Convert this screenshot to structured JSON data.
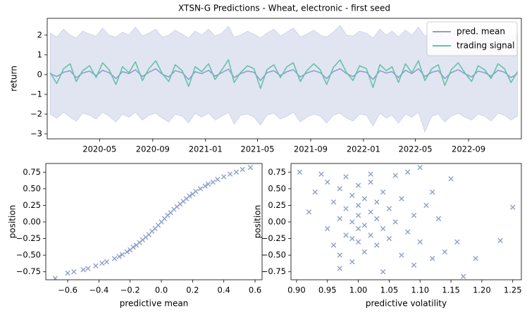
{
  "chart_data": [
    {
      "type": "line",
      "title": "XTSN-G Predictions - Wheat, electronic - first seed",
      "ylabel": "return",
      "x": [
        "2020-01-08",
        "2020-01-23",
        "2020-02-08",
        "2020-02-23",
        "2020-03-08",
        "2020-03-23",
        "2020-04-08",
        "2020-04-23",
        "2020-05-08",
        "2020-05-23",
        "2020-06-08",
        "2020-06-23",
        "2020-07-08",
        "2020-07-23",
        "2020-08-08",
        "2020-08-23",
        "2020-09-08",
        "2020-09-23",
        "2020-10-08",
        "2020-10-23",
        "2020-11-08",
        "2020-11-23",
        "2020-12-08",
        "2020-12-23",
        "2021-01-08",
        "2021-01-23",
        "2021-02-08",
        "2021-02-23",
        "2021-03-08",
        "2021-03-23",
        "2021-04-08",
        "2021-04-23",
        "2021-05-08",
        "2021-05-23",
        "2021-06-08",
        "2021-06-23",
        "2021-07-08",
        "2021-07-23",
        "2021-08-08",
        "2021-08-23",
        "2021-09-08",
        "2021-09-23",
        "2021-10-08",
        "2021-10-23",
        "2021-11-08",
        "2021-11-23",
        "2021-12-08",
        "2021-12-23",
        "2022-01-08",
        "2022-01-23",
        "2022-02-08",
        "2022-02-23",
        "2022-03-08",
        "2022-03-23",
        "2022-04-08",
        "2022-04-23",
        "2022-05-08",
        "2022-05-23",
        "2022-06-08",
        "2022-06-23",
        "2022-07-08",
        "2022-07-23",
        "2022-08-08",
        "2022-08-23",
        "2022-09-08",
        "2022-09-23",
        "2022-10-08",
        "2022-10-23",
        "2022-11-08",
        "2022-11-23",
        "2022-12-08",
        "2022-12-23"
      ],
      "band": {
        "color": "#e1e5f2",
        "edge": "#c3cbe6",
        "upper": [
          2.1,
          1.9,
          2.3,
          2.0,
          1.85,
          2.2,
          2.05,
          1.95,
          2.35,
          2.0,
          1.9,
          2.15,
          2.0,
          2.4,
          1.95,
          2.1,
          2.3,
          1.9,
          2.0,
          2.25,
          2.05,
          1.85,
          2.2,
          2.0,
          2.3,
          1.95,
          2.1,
          2.45,
          1.9,
          2.0,
          2.2,
          2.05,
          1.85,
          2.1,
          2.3,
          1.95,
          2.15,
          2.35,
          1.9,
          2.05,
          2.25,
          2.0,
          1.9,
          2.15,
          2.5,
          2.0,
          1.95,
          2.2,
          2.1,
          1.85,
          2.3,
          2.0,
          2.2,
          1.9,
          2.25,
          2.0,
          2.4,
          1.95,
          2.1,
          2.25,
          1.9,
          2.05,
          2.35,
          2.0,
          1.95,
          2.2,
          2.1,
          1.9,
          2.3,
          2.1,
          1.95,
          2.05
        ],
        "lower": [
          -2.0,
          -2.2,
          -1.9,
          -2.15,
          -2.35,
          -1.95,
          -2.05,
          -2.25,
          -1.9,
          -2.1,
          -2.4,
          -2.0,
          -2.15,
          -1.9,
          -2.3,
          -2.05,
          -1.95,
          -2.2,
          -2.4,
          -2.0,
          -2.1,
          -2.45,
          -1.95,
          -2.15,
          -1.95,
          -2.3,
          -2.1,
          -1.9,
          -2.5,
          -2.05,
          -2.0,
          -2.15,
          -2.55,
          -2.05,
          -1.95,
          -2.25,
          -2.1,
          -1.9,
          -2.4,
          -2.15,
          -2.0,
          -2.1,
          -2.45,
          -2.05,
          -1.95,
          -2.2,
          -2.35,
          -2.0,
          -2.05,
          -2.6,
          -1.95,
          -2.2,
          -2.05,
          -2.45,
          -2.0,
          -2.15,
          -1.9,
          -2.9,
          -2.1,
          -2.0,
          -2.4,
          -2.1,
          -1.95,
          -2.15,
          -2.3,
          -2.0,
          -2.1,
          -2.35,
          -1.95,
          -2.05,
          -2.3,
          -2.1
        ]
      },
      "series": [
        {
          "name": "pred. mean",
          "color": "#8da0cb",
          "values": [
            0.05,
            -0.1,
            0.12,
            0.2,
            -0.15,
            0.08,
            0.18,
            -0.05,
            0.22,
            0.1,
            -0.2,
            0.15,
            0.05,
            0.25,
            -0.1,
            0.12,
            0.3,
            0.02,
            -0.12,
            0.2,
            0.1,
            -0.25,
            0.15,
            0.05,
            0.22,
            -0.08,
            0.1,
            0.28,
            -0.15,
            0.05,
            0.18,
            0.12,
            -0.3,
            0.1,
            0.2,
            -0.05,
            0.15,
            0.25,
            -0.12,
            0.08,
            0.2,
            0.1,
            -0.2,
            0.15,
            0.3,
            0.05,
            -0.1,
            0.18,
            0.12,
            -0.25,
            0.2,
            0.08,
            0.15,
            -0.15,
            0.22,
            0.05,
            0.3,
            -0.1,
            0.12,
            0.2,
            -0.2,
            0.1,
            0.25,
            0.05,
            -0.12,
            0.18,
            0.1,
            -0.08,
            0.22,
            0.12,
            -0.15,
            0.05
          ]
        },
        {
          "name": "trading signal",
          "color": "#66c2a5",
          "values": [
            0.1,
            -0.45,
            0.3,
            0.55,
            -0.35,
            0.2,
            0.45,
            -0.15,
            0.6,
            0.25,
            -0.5,
            0.4,
            0.1,
            0.65,
            -0.3,
            0.3,
            0.7,
            0.05,
            -0.35,
            0.5,
            0.2,
            -0.6,
            0.4,
            0.15,
            0.55,
            -0.25,
            0.25,
            0.75,
            -0.4,
            0.1,
            0.45,
            0.3,
            -0.7,
            0.25,
            0.5,
            -0.15,
            0.4,
            0.6,
            -0.35,
            0.2,
            0.55,
            0.25,
            -0.5,
            0.35,
            0.75,
            0.1,
            -0.3,
            0.45,
            0.3,
            -0.65,
            0.5,
            0.2,
            0.4,
            -0.4,
            0.55,
            0.1,
            0.7,
            -0.3,
            0.3,
            0.5,
            -0.55,
            0.25,
            0.6,
            0.1,
            -0.35,
            0.45,
            0.25,
            -0.2,
            0.55,
            0.3,
            -0.4,
            0.15
          ]
        }
      ],
      "xlim": [
        "2020-01-01",
        "2023-01-01"
      ],
      "xticks": [
        {
          "value": "2020-05-01",
          "label": "2020-05"
        },
        {
          "value": "2020-09-01",
          "label": "2020-09"
        },
        {
          "value": "2021-01-01",
          "label": "2021-01"
        },
        {
          "value": "2021-05-01",
          "label": "2021-05"
        },
        {
          "value": "2021-09-01",
          "label": "2021-09"
        },
        {
          "value": "2022-01-01",
          "label": "2022-01"
        },
        {
          "value": "2022-05-01",
          "label": "2022-05"
        },
        {
          "value": "2022-09-01",
          "label": "2022-09"
        }
      ],
      "ylim": [
        -3.25,
        2.85
      ],
      "yticks": [
        2,
        1,
        0,
        {
          "value": -1,
          "label": "−1"
        },
        {
          "value": -2,
          "label": "−2"
        },
        {
          "value": -3,
          "label": "−3"
        }
      ],
      "legend": "upper right"
    },
    {
      "type": "scatter",
      "xlabel": "predictive mean",
      "ylabel": "position",
      "color": "#8da0cb",
      "x": [
        -0.68,
        -0.6,
        -0.56,
        -0.5,
        -0.47,
        -0.42,
        -0.38,
        -0.35,
        -0.3,
        -0.27,
        -0.25,
        -0.22,
        -0.2,
        -0.18,
        -0.16,
        -0.14,
        -0.12,
        -0.1,
        -0.08,
        -0.06,
        -0.04,
        -0.02,
        0.0,
        0.02,
        0.04,
        0.06,
        0.08,
        0.1,
        0.12,
        0.14,
        0.16,
        0.18,
        0.2,
        0.22,
        0.25,
        0.28,
        0.3,
        0.33,
        0.36,
        0.4,
        0.44,
        0.48,
        0.52,
        0.57
      ],
      "values": [
        -0.85,
        -0.77,
        -0.75,
        -0.72,
        -0.7,
        -0.66,
        -0.62,
        -0.6,
        -0.55,
        -0.52,
        -0.49,
        -0.45,
        -0.42,
        -0.38,
        -0.35,
        -0.31,
        -0.27,
        -0.23,
        -0.19,
        -0.14,
        -0.1,
        -0.05,
        0.0,
        0.05,
        0.1,
        0.14,
        0.19,
        0.23,
        0.27,
        0.31,
        0.35,
        0.39,
        0.42,
        0.46,
        0.5,
        0.54,
        0.57,
        0.6,
        0.64,
        0.68,
        0.72,
        0.75,
        0.79,
        0.82
      ],
      "xlim": [
        -0.74,
        0.645
      ],
      "xticks": [
        {
          "value": -0.6,
          "label": "−0.6"
        },
        {
          "value": -0.4,
          "label": "−0.4"
        },
        {
          "value": -0.2,
          "label": "−0.2"
        },
        {
          "value": 0,
          "label": "0.0"
        },
        0.2,
        0.4,
        0.6
      ],
      "ylim": [
        -0.87,
        0.88
      ],
      "yticks": [
        0.75,
        {
          "value": 0.5,
          "label": "0.50"
        },
        0.25,
        {
          "value": 0,
          "label": "0.00"
        },
        {
          "value": -0.25,
          "label": "−0.25"
        },
        {
          "value": -0.5,
          "label": "−0.50"
        },
        {
          "value": -0.75,
          "label": "−0.75"
        }
      ]
    },
    {
      "type": "scatter",
      "xlabel": "predictive volatility",
      "ylabel": "position",
      "color": "#8da0cb",
      "x": [
        0.905,
        0.92,
        0.93,
        0.94,
        0.95,
        0.95,
        0.96,
        0.96,
        0.97,
        0.97,
        0.97,
        0.98,
        0.98,
        0.98,
        0.99,
        0.99,
        0.99,
        1.0,
        1.0,
        1.0,
        1.0,
        1.01,
        1.01,
        1.01,
        1.02,
        1.02,
        1.02,
        1.03,
        1.03,
        1.03,
        1.04,
        1.04,
        1.04,
        1.05,
        1.05,
        1.06,
        1.06,
        1.07,
        1.07,
        1.08,
        1.08,
        1.09,
        1.09,
        1.1,
        1.1,
        1.11,
        1.12,
        1.12,
        1.13,
        1.14,
        1.15,
        1.16,
        1.17,
        1.19,
        1.23,
        1.25,
        0.97,
        1.02,
        0.99,
        1.0
      ],
      "values": [
        0.75,
        0.15,
        0.45,
        0.72,
        0.6,
        -0.1,
        0.3,
        -0.35,
        0.5,
        0.05,
        -0.5,
        0.68,
        0.2,
        -0.2,
        0.4,
        0.0,
        -0.6,
        0.55,
        0.1,
        -0.3,
        0.25,
        -0.05,
        0.35,
        -0.45,
        0.15,
        -0.2,
        0.6,
        0.05,
        -0.35,
        0.3,
        -0.1,
        0.45,
        -0.75,
        0.2,
        -0.25,
        0.7,
        0.0,
        -0.5,
        0.35,
        0.75,
        -0.15,
        0.1,
        -0.65,
        0.82,
        -0.3,
        0.25,
        -0.55,
        0.45,
        0.05,
        -0.45,
        0.65,
        -0.3,
        -0.82,
        -0.55,
        -0.28,
        0.22,
        -0.7,
        0.72,
        -0.25,
        -0.1
      ],
      "xlim": [
        0.891,
        1.264
      ],
      "xticks": [
        {
          "value": 0.9,
          "label": "0.90"
        },
        0.95,
        {
          "value": 1,
          "label": "1.00"
        },
        1.05,
        {
          "value": 1.1,
          "label": "1.10"
        },
        1.15,
        {
          "value": 1.2,
          "label": "1.20"
        },
        1.25
      ],
      "ylim": [
        -0.87,
        0.88
      ],
      "yticks": [
        0.75,
        {
          "value": 0.5,
          "label": "0.50"
        },
        0.25,
        {
          "value": 0,
          "label": "0.00"
        },
        {
          "value": -0.25,
          "label": "−0.25"
        },
        {
          "value": -0.5,
          "label": "−0.50"
        },
        {
          "value": -0.75,
          "label": "−0.75"
        }
      ]
    }
  ]
}
